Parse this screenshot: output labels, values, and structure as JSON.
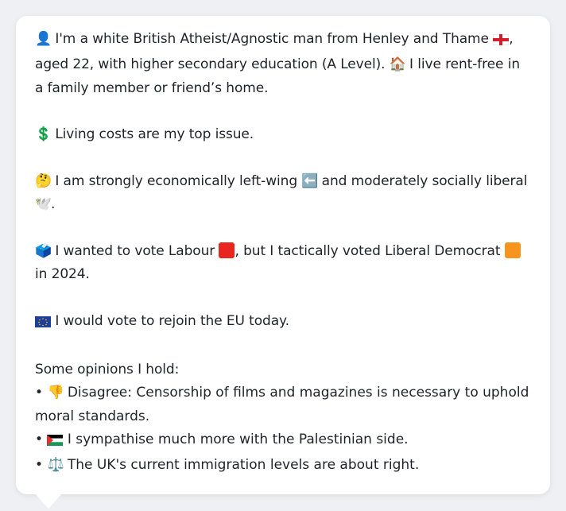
{
  "profile": {
    "intro_text": "I'm a white British Atheist/Agnostic man from Henley and Thame",
    "intro_rest": ", aged 22, with higher secondary education (A Level).",
    "housing_text": "I live rent-free in a family member or friend’s home.",
    "issue_text": "Living costs are my top issue.",
    "politics_pre": "I am strongly economically left-wing",
    "politics_post": "and moderately socially liberal",
    "politics_end": ".",
    "vote_pre": "I wanted to vote Labour",
    "vote_mid": ", but I tactically voted Liberal Democrat",
    "vote_end": "in 2024.",
    "eu_text": "I would vote to rejoin the EU today.",
    "opinions_heading": "Some opinions I hold:",
    "opinions": [
      {
        "bullet": "•",
        "text": "Disagree: Censorship of films and magazines is necessary to uphold moral standards."
      },
      {
        "bullet": "•",
        "text": "I sympathise much more with the Palestinian side."
      },
      {
        "bullet": "•",
        "text": "The UK's current immigration levels are about right."
      }
    ]
  },
  "icons": {
    "person": "👤",
    "england_flag": "england-flag-icon",
    "house": "🏠",
    "dollar": "💲",
    "thinking": "🤔",
    "left_arrow": "⬅️",
    "dove": "🕊️",
    "ballot_box": "🗳️",
    "eu_flag": "eu-flag-icon",
    "thumbs_down": "👎",
    "palestine_flag": "palestine-flag-icon",
    "scales": "⚖️"
  },
  "colors": {
    "labour": "#e8251f",
    "libdem": "#f7941d",
    "card_bg": "#ffffff",
    "page_bg": "#eef0f3"
  }
}
